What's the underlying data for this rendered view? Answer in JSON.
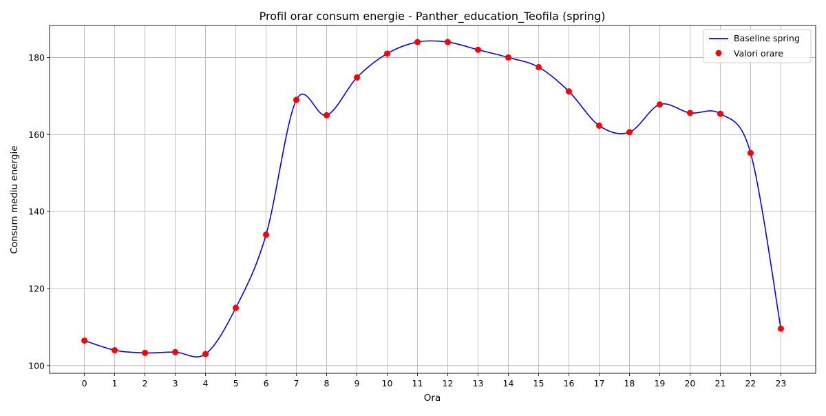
{
  "chart_data": {
    "type": "line",
    "title": "Profil orar consum energie - Panther_education_Teofila (spring)",
    "xlabel": "Ora",
    "ylabel": "Consum mediu energie",
    "x": [
      0,
      1,
      2,
      3,
      4,
      5,
      6,
      7,
      8,
      9,
      10,
      11,
      12,
      13,
      14,
      15,
      16,
      17,
      18,
      19,
      20,
      21,
      22,
      23
    ],
    "x_tick_labels": [
      "0",
      "1",
      "2",
      "3",
      "4",
      "5",
      "6",
      "7",
      "8",
      "9",
      "10",
      "11",
      "12",
      "13",
      "14",
      "15",
      "16",
      "17",
      "18",
      "19",
      "20",
      "21",
      "22",
      "23"
    ],
    "y_ticks": [
      100,
      120,
      140,
      160,
      180
    ],
    "y_tick_labels": [
      "100",
      "120",
      "140",
      "160",
      "180"
    ],
    "xlim": [
      -1.15,
      24.15
    ],
    "ylim": [
      98,
      188.3
    ],
    "grid": true,
    "legend_position": "top-right",
    "series": [
      {
        "name": "Baseline spring",
        "kind": "line",
        "color": "#0000ff",
        "values": [
          106.5,
          104.0,
          103.3,
          103.5,
          103.0,
          115.0,
          134.0,
          169.0,
          165.0,
          174.8,
          181.0,
          184.0,
          184.0,
          182.0,
          180.0,
          177.5,
          171.2,
          162.3,
          160.6,
          167.8,
          165.6,
          165.4,
          155.2,
          109.6
        ]
      },
      {
        "name": "Valori orare",
        "kind": "scatter",
        "color": "#ff0000",
        "values": [
          106.5,
          104.0,
          103.3,
          103.5,
          103.0,
          115.0,
          134.0,
          169.0,
          165.0,
          174.8,
          181.0,
          184.0,
          184.0,
          182.0,
          180.0,
          177.5,
          171.2,
          162.3,
          160.6,
          167.8,
          165.6,
          165.4,
          155.2,
          109.6
        ]
      }
    ]
  }
}
